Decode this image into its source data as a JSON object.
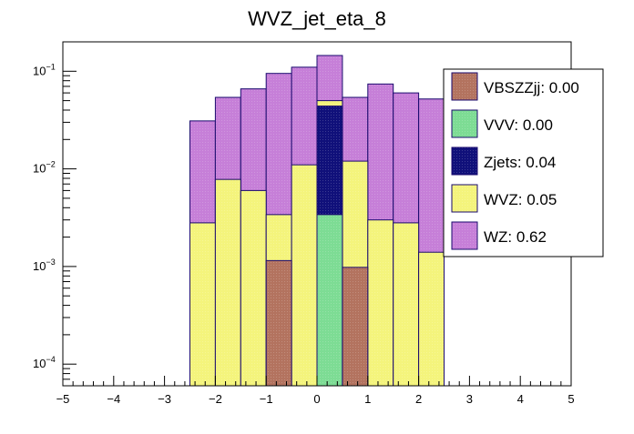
{
  "chart_data": {
    "type": "bar",
    "stacked": true,
    "title": "WVZ_jet_eta_8",
    "xlabel": "",
    "ylabel": "",
    "xlim": [
      -5,
      5
    ],
    "ylim": [
      6e-05,
      0.2
    ],
    "log_y": true,
    "grid": false,
    "bin_width": 0.5,
    "bin_low_edges": [
      -2.5,
      -2.0,
      -1.5,
      -1.0,
      -0.5,
      0.0,
      0.5,
      1.0,
      1.5,
      2.0
    ],
    "x_ticks": [
      "−5",
      "−4",
      "−3",
      "−2",
      "−1",
      "0",
      "1",
      "2",
      "3",
      "4",
      "5"
    ],
    "x_tick_values": [
      -5,
      -4,
      -3,
      -2,
      -1,
      0,
      1,
      2,
      3,
      4,
      5
    ],
    "y_ticks": [
      {
        "value": 0.0001,
        "mantissa": "10",
        "exponent": "−4"
      },
      {
        "value": 0.001,
        "mantissa": "10",
        "exponent": "−3"
      },
      {
        "value": 0.01,
        "mantissa": "10",
        "exponent": "−2"
      },
      {
        "value": 0.1,
        "mantissa": "10",
        "exponent": "−1"
      }
    ],
    "legend_position": "top-right",
    "series": [
      {
        "name": "WZ",
        "legend": "WZ: 0.62",
        "color": "#c67fd8",
        "cumulative_top": [
          0.031,
          0.054,
          0.066,
          0.095,
          0.11,
          0.145,
          0.054,
          0.074,
          0.06,
          0.052
        ]
      },
      {
        "name": "WVZ",
        "legend": "WVZ: 0.05",
        "color": "#f4f47c",
        "cumulative_top": [
          0.0028,
          0.0078,
          0.006,
          0.0034,
          0.011,
          0.05,
          0.012,
          0.003,
          0.0028,
          0.0014
        ]
      },
      {
        "name": "Zjets",
        "legend": "Zjets: 0.04",
        "color": "#10107a",
        "cumulative_top": [
          0,
          0,
          0,
          0,
          0,
          0.044,
          0,
          0,
          0,
          0
        ]
      },
      {
        "name": "VVV",
        "legend": "VVV: 0.00",
        "color": "#7ddc94",
        "cumulative_top": [
          0,
          0,
          0,
          0,
          0,
          0.0034,
          0,
          0,
          0,
          0
        ]
      },
      {
        "name": "VBSZZjj",
        "legend": "VBSZZjj: 0.00",
        "color": "#b3735f",
        "cumulative_top": [
          0,
          0,
          0,
          0.00115,
          0,
          0,
          0.00098,
          0,
          0,
          0
        ]
      }
    ],
    "legend_order": [
      "VBSZZjj",
      "VVV",
      "Zjets",
      "WVZ",
      "WZ"
    ]
  }
}
